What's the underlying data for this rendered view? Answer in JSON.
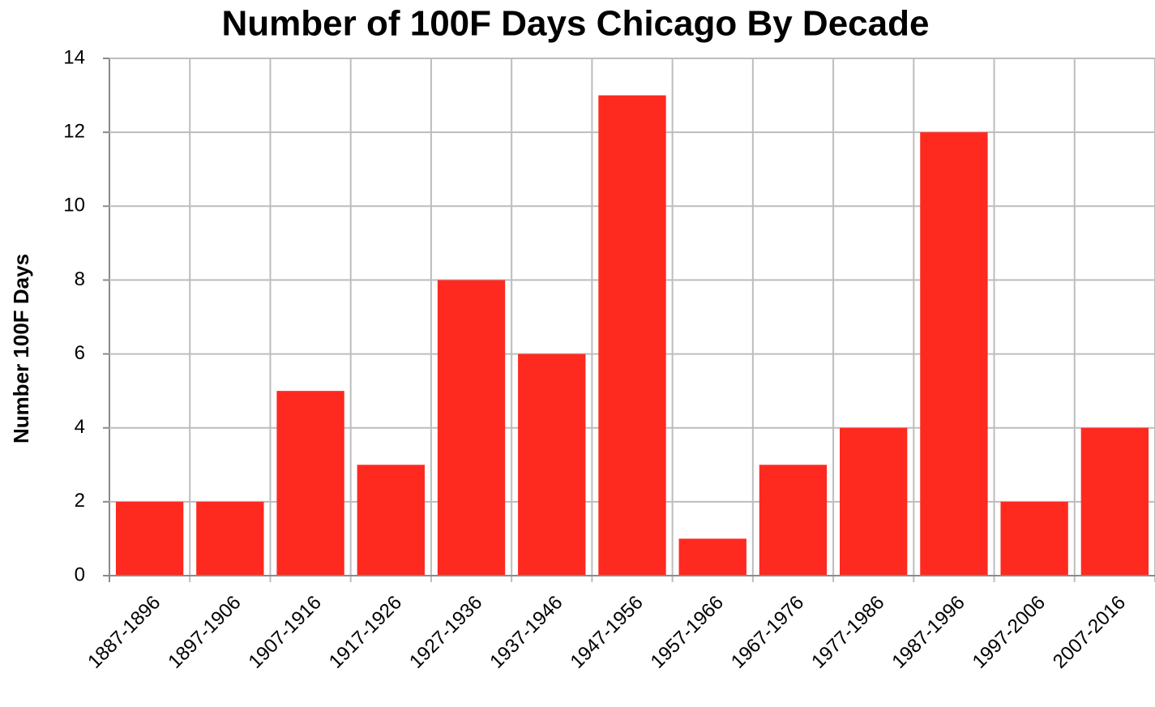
{
  "chart_data": {
    "type": "bar",
    "title": "Number of 100F Days Chicago By Decade",
    "y_label": "Number 100F Days",
    "categories": [
      "1887-1896",
      "1897-1906",
      "1907-1916",
      "1917-1926",
      "1927-1936",
      "1937-1946",
      "1947-1956",
      "1957-1966",
      "1967-1976",
      "1977-1986",
      "1987-1996",
      "1997-2006",
      "2007-2016"
    ],
    "values": [
      2,
      2,
      5,
      3,
      8,
      6,
      13,
      1,
      3,
      4,
      12,
      2,
      4
    ],
    "color": "#fe2a20",
    "ylim": [
      0,
      14
    ],
    "yticks": [
      0,
      2,
      4,
      6,
      8,
      10,
      12,
      14
    ],
    "grid": true
  }
}
